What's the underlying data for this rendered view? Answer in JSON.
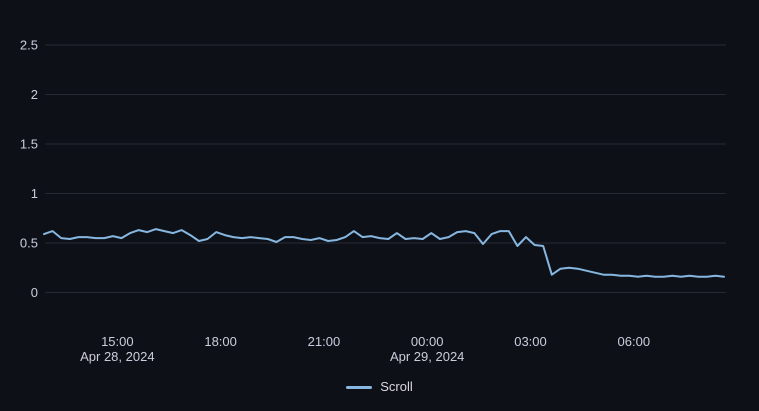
{
  "panel": {
    "background": "#0d1117"
  },
  "chart_data": {
    "type": "line",
    "title": "",
    "xlabel": "",
    "ylabel": "",
    "ylim": [
      0,
      2.5
    ],
    "grid": true,
    "legend_position": "bottom-center",
    "start_time": "Apr 28, 2024 12:52",
    "interval_minutes": 15,
    "x_span_hours": 19.75,
    "series": [
      {
        "name": "Scroll",
        "color": "#87b7e0",
        "values": [
          0.59,
          0.62,
          0.55,
          0.54,
          0.56,
          0.56,
          0.55,
          0.55,
          0.57,
          0.55,
          0.6,
          0.63,
          0.61,
          0.64,
          0.62,
          0.6,
          0.63,
          0.58,
          0.52,
          0.54,
          0.61,
          0.58,
          0.56,
          0.55,
          0.56,
          0.55,
          0.54,
          0.51,
          0.56,
          0.56,
          0.54,
          0.53,
          0.55,
          0.52,
          0.53,
          0.56,
          0.62,
          0.56,
          0.57,
          0.55,
          0.54,
          0.6,
          0.54,
          0.55,
          0.54,
          0.6,
          0.54,
          0.56,
          0.61,
          0.62,
          0.6,
          0.49,
          0.59,
          0.62,
          0.62,
          0.47,
          0.56,
          0.48,
          0.47,
          0.18,
          0.24,
          0.25,
          0.24,
          0.22,
          0.2,
          0.18,
          0.18,
          0.17,
          0.17,
          0.16,
          0.17,
          0.16,
          0.16,
          0.17,
          0.16,
          0.17,
          0.16,
          0.16,
          0.17,
          0.16
        ]
      }
    ],
    "x_ticks": [
      {
        "label": "15:00",
        "hours": 2.13,
        "date": "Apr 28, 2024"
      },
      {
        "label": "18:00",
        "hours": 5.13
      },
      {
        "label": "21:00",
        "hours": 8.13
      },
      {
        "label": "00:00",
        "hours": 11.13,
        "date": "Apr 29, 2024"
      },
      {
        "label": "03:00",
        "hours": 14.13
      },
      {
        "label": "06:00",
        "hours": 17.13
      }
    ],
    "y_ticks": [
      {
        "label": "0",
        "value": 0
      },
      {
        "label": "0.5",
        "value": 0.5
      },
      {
        "label": "1",
        "value": 1
      },
      {
        "label": "1.5",
        "value": 1.5
      },
      {
        "label": "2",
        "value": 2
      },
      {
        "label": "2.5",
        "value": 2.5
      }
    ],
    "colors": {
      "grid": "#262933",
      "axis_text": "#ccccdc",
      "line": "#87b7e0"
    }
  }
}
